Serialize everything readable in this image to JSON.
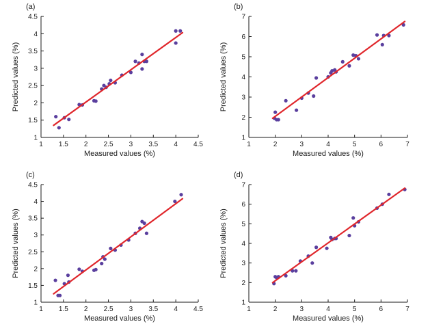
{
  "colors": {
    "points": "#5a3f9e",
    "fit_line": "#e0262b",
    "axis": "#1a1a1a"
  },
  "chart_data": [
    {
      "type": "scatter",
      "panel_label": "(a)",
      "xlabel": "Measured values (%)",
      "ylabel": "Predicted values (%)",
      "xlim": [
        1,
        4.5
      ],
      "ylim": [
        1,
        4.5
      ],
      "xticks": [
        1,
        1.5,
        2,
        2.5,
        3,
        3.5,
        4,
        4.5
      ],
      "yticks": [
        1,
        1.5,
        2,
        2.5,
        3,
        3.5,
        4,
        4.5
      ],
      "xtick_labels": [
        "1",
        "1.5",
        "2",
        "2.5",
        "3",
        "3.5",
        "4",
        "4.5"
      ],
      "ytick_labels": [
        "1",
        "1.5",
        "2",
        "2.5",
        "3",
        "3.5",
        "4",
        "4.5"
      ],
      "points": [
        [
          1.33,
          1.6
        ],
        [
          1.4,
          1.28
        ],
        [
          1.52,
          1.57
        ],
        [
          1.62,
          1.52
        ],
        [
          1.85,
          1.95
        ],
        [
          1.92,
          1.94
        ],
        [
          2.18,
          2.06
        ],
        [
          2.22,
          2.05
        ],
        [
          2.35,
          2.4
        ],
        [
          2.4,
          2.5
        ],
        [
          2.45,
          2.45
        ],
        [
          2.52,
          2.55
        ],
        [
          2.55,
          2.65
        ],
        [
          2.65,
          2.58
        ],
        [
          2.8,
          2.8
        ],
        [
          3.0,
          2.88
        ],
        [
          3.1,
          3.2
        ],
        [
          3.18,
          3.15
        ],
        [
          3.25,
          3.4
        ],
        [
          3.25,
          2.98
        ],
        [
          3.3,
          3.2
        ],
        [
          3.35,
          3.2
        ],
        [
          4.0,
          4.08
        ],
        [
          4.0,
          3.73
        ],
        [
          4.1,
          4.08
        ]
      ],
      "fit_line": [
        [
          1.28,
          1.35
        ],
        [
          4.15,
          4.03
        ]
      ]
    },
    {
      "type": "scatter",
      "panel_label": "(b)",
      "xlabel": "Measured values (%)",
      "ylabel": "Predicted values (%)",
      "xlim": [
        1,
        7
      ],
      "ylim": [
        1,
        7
      ],
      "xticks": [
        1,
        2,
        3,
        4,
        5,
        6,
        7
      ],
      "yticks": [
        1,
        2,
        3,
        4,
        5,
        6,
        7
      ],
      "xtick_labels": [
        "1",
        "2",
        "3",
        "4",
        "5",
        "6",
        "7"
      ],
      "ytick_labels": [
        "1",
        "2",
        "3",
        "4",
        "5",
        "6",
        "7"
      ],
      "points": [
        [
          1.97,
          1.95
        ],
        [
          2.0,
          2.25
        ],
        [
          2.05,
          1.88
        ],
        [
          2.12,
          1.88
        ],
        [
          2.4,
          2.82
        ],
        [
          2.8,
          2.35
        ],
        [
          3.0,
          2.95
        ],
        [
          3.25,
          3.2
        ],
        [
          3.45,
          3.05
        ],
        [
          3.55,
          3.95
        ],
        [
          4.0,
          4.0
        ],
        [
          4.1,
          4.2
        ],
        [
          4.15,
          4.3
        ],
        [
          4.25,
          4.35
        ],
        [
          4.3,
          4.25
        ],
        [
          4.55,
          4.75
        ],
        [
          4.8,
          4.55
        ],
        [
          4.95,
          5.08
        ],
        [
          5.05,
          5.05
        ],
        [
          5.15,
          4.9
        ],
        [
          5.85,
          6.08
        ],
        [
          6.05,
          5.6
        ],
        [
          6.1,
          6.05
        ],
        [
          6.3,
          6.05
        ],
        [
          6.85,
          6.58
        ]
      ],
      "fit_line": [
        [
          1.9,
          1.95
        ],
        [
          6.9,
          6.75
        ]
      ]
    },
    {
      "type": "scatter",
      "panel_label": "(c)",
      "xlabel": "Measured values (%)",
      "ylabel": "Predicted values (%)",
      "xlim": [
        1,
        4.5
      ],
      "ylim": [
        1,
        4.5
      ],
      "xticks": [
        1,
        1.5,
        2,
        2.5,
        3,
        3.5,
        4,
        4.5
      ],
      "yticks": [
        1,
        1.5,
        2,
        2.5,
        3,
        3.5,
        4,
        4.5
      ],
      "xtick_labels": [
        "1",
        "1.5",
        "2",
        "2.5",
        "3",
        "3.5",
        "4",
        "4.5"
      ],
      "ytick_labels": [
        "1",
        "1.5",
        "2",
        "2.5",
        "3",
        "3.5",
        "4",
        "4.5"
      ],
      "points": [
        [
          1.32,
          1.65
        ],
        [
          1.38,
          1.2
        ],
        [
          1.42,
          1.2
        ],
        [
          1.52,
          1.55
        ],
        [
          1.6,
          1.8
        ],
        [
          1.62,
          1.6
        ],
        [
          1.85,
          1.98
        ],
        [
          1.92,
          1.92
        ],
        [
          2.18,
          1.95
        ],
        [
          2.22,
          1.97
        ],
        [
          2.35,
          2.15
        ],
        [
          2.38,
          2.35
        ],
        [
          2.42,
          2.28
        ],
        [
          2.55,
          2.6
        ],
        [
          2.65,
          2.55
        ],
        [
          2.78,
          2.7
        ],
        [
          2.95,
          2.85
        ],
        [
          3.1,
          3.05
        ],
        [
          3.2,
          3.2
        ],
        [
          3.25,
          3.4
        ],
        [
          3.3,
          3.35
        ],
        [
          3.35,
          3.05
        ],
        [
          3.98,
          4.0
        ],
        [
          4.12,
          4.2
        ]
      ],
      "fit_line": [
        [
          1.28,
          1.25
        ],
        [
          4.15,
          4.08
        ]
      ]
    },
    {
      "type": "scatter",
      "panel_label": "(d)",
      "xlabel": "Measured values (%)",
      "ylabel": "Predicted values (%)",
      "xlim": [
        1,
        7
      ],
      "ylim": [
        1,
        7
      ],
      "xticks": [
        1,
        2,
        3,
        4,
        5,
        6,
        7
      ],
      "yticks": [
        1,
        2,
        3,
        4,
        5,
        6,
        7
      ],
      "xtick_labels": [
        "1",
        "2",
        "3",
        "4",
        "5",
        "6",
        "7"
      ],
      "ytick_labels": [
        "1",
        "2",
        "3",
        "4",
        "5",
        "6",
        "7"
      ],
      "points": [
        [
          1.95,
          1.95
        ],
        [
          2.0,
          2.3
        ],
        [
          2.05,
          2.25
        ],
        [
          2.12,
          2.3
        ],
        [
          2.4,
          2.35
        ],
        [
          2.65,
          2.6
        ],
        [
          2.78,
          2.6
        ],
        [
          2.95,
          3.1
        ],
        [
          3.25,
          3.35
        ],
        [
          3.4,
          3.0
        ],
        [
          3.55,
          3.8
        ],
        [
          3.95,
          3.75
        ],
        [
          4.1,
          4.3
        ],
        [
          4.15,
          4.2
        ],
        [
          4.25,
          4.25
        ],
        [
          4.3,
          4.25
        ],
        [
          4.8,
          4.4
        ],
        [
          4.95,
          5.3
        ],
        [
          5.0,
          4.9
        ],
        [
          5.15,
          5.1
        ],
        [
          5.85,
          5.8
        ],
        [
          6.05,
          6.0
        ],
        [
          6.3,
          6.5
        ],
        [
          6.9,
          6.75
        ]
      ],
      "fit_line": [
        [
          1.9,
          2.0
        ],
        [
          6.9,
          6.82
        ]
      ]
    }
  ]
}
